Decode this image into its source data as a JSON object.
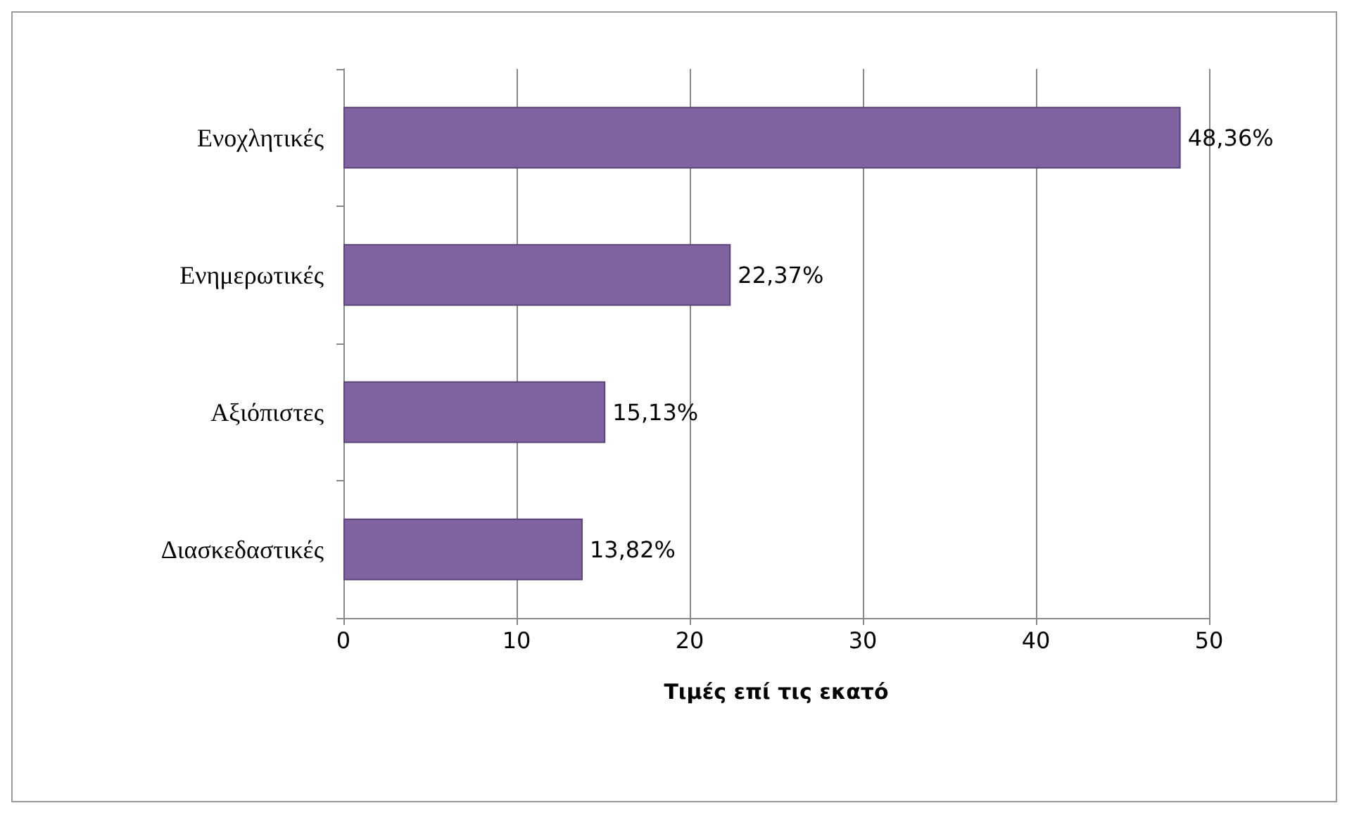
{
  "chart_data": {
    "type": "bar",
    "orientation": "horizontal",
    "xlabel": "Τιμές επί τις εκατό",
    "categories": [
      "Ενοχλητικές",
      "Ενημερωτικές",
      "Αξιόπιστες",
      "Διασκεδαστικές"
    ],
    "values": [
      48.36,
      22.37,
      15.13,
      13.82
    ],
    "value_labels": [
      "48,36%",
      "22,37%",
      "15,13%",
      "13,82%"
    ],
    "color": "#8064a2",
    "xlim": [
      0,
      50
    ],
    "xticks": [
      0,
      10,
      20,
      30,
      40,
      50
    ],
    "grid": "x"
  }
}
